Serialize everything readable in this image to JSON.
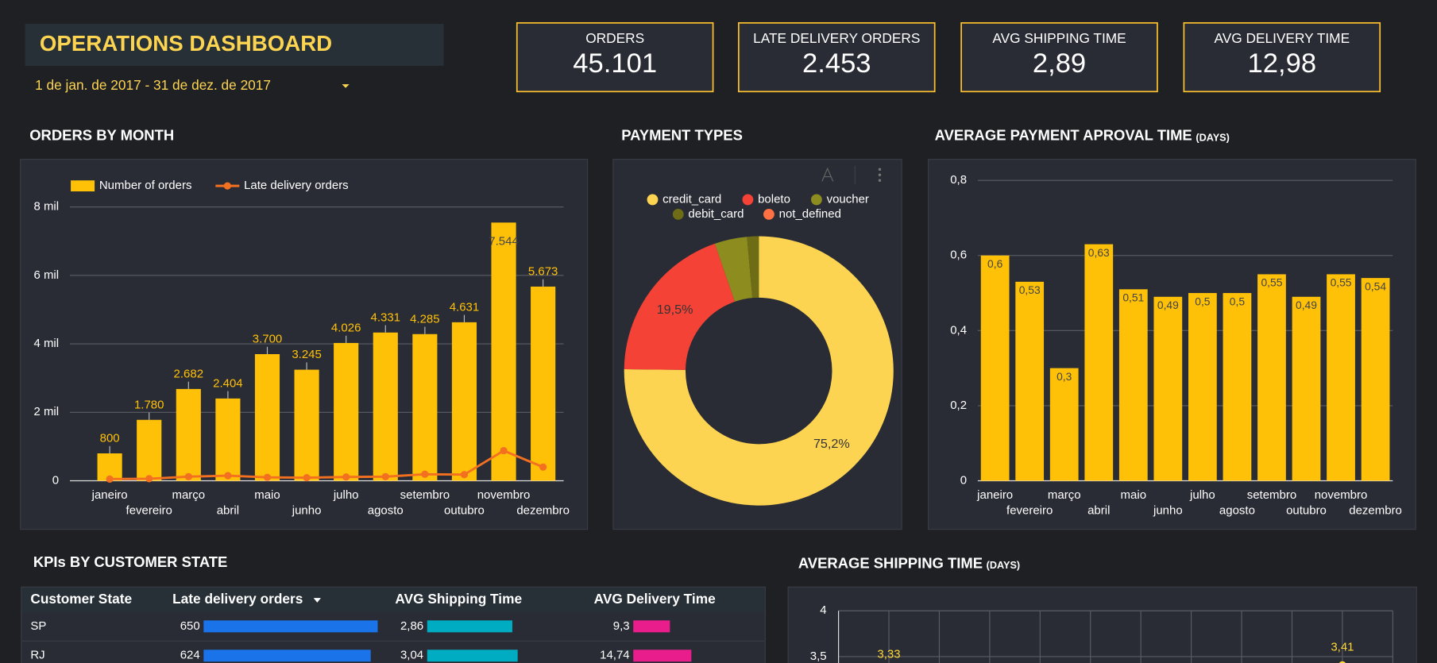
{
  "header": {
    "title": "OPERATIONS DASHBOARD",
    "date_range": "1 de jan. de 2017 - 31 de dez. de 2017"
  },
  "kpis": [
    {
      "label": "ORDERS",
      "value": "45.101"
    },
    {
      "label": "LATE DELIVERY ORDERS",
      "value": "2.453"
    },
    {
      "label": "AVG SHIPPING TIME",
      "value": "2,89"
    },
    {
      "label": "AVG DELIVERY TIME",
      "value": "12,98"
    }
  ],
  "table": {
    "title": "KPIs BY CUSTOMER STATE",
    "columns": [
      "Customer State",
      "Late delivery orders",
      "AVG Shipping Time",
      "AVG Delivery Time"
    ],
    "rows": [
      [
        "SP",
        650,
        {
          "value": 2.86,
          "label": "2,86"
        },
        {
          "value": 9.3,
          "label": "9,3"
        }
      ],
      [
        "RJ",
        624,
        {
          "value": 3.04,
          "label": "3,04"
        },
        {
          "value": 14.74,
          "label": "14,74"
        }
      ]
    ]
  },
  "chart_data": [
    {
      "type": "combo",
      "title": "ORDERS BY MONTH",
      "categories": [
        "janeiro",
        "fevereiro",
        "março",
        "abril",
        "maio",
        "junho",
        "julho",
        "agosto",
        "setembro",
        "outubro",
        "novembro",
        "dezembro"
      ],
      "series": [
        {
          "name": "Number of orders",
          "type": "bar",
          "color": "#ffc107",
          "values": [
            800,
            1780,
            2682,
            2404,
            3700,
            3245,
            4026,
            4331,
            4285,
            4631,
            7544,
            5673
          ],
          "value_labels": [
            "800",
            "1.780",
            "2.682",
            "2.404",
            "3.700",
            "3.245",
            "4.026",
            "4.331",
            "4.285",
            "4.631",
            "7.544",
            "5.673"
          ]
        },
        {
          "name": "Late delivery orders",
          "type": "line",
          "color": "#f37021",
          "values": [
            50,
            60,
            120,
            150,
            100,
            90,
            110,
            120,
            190,
            180,
            880,
            400
          ]
        }
      ],
      "ylim": [
        0,
        8000
      ],
      "yticks": [
        0,
        {
          "value": 2000,
          "label": "2 mil"
        },
        {
          "value": 4000,
          "label": "4 mil"
        },
        {
          "value": 6000,
          "label": "6 mil"
        },
        {
          "value": 8000,
          "label": "8 mil"
        }
      ],
      "grid": true,
      "legend": "top-left"
    },
    {
      "type": "pie",
      "title": "PAYMENT TYPES",
      "categories": [
        "credit_card",
        "boleto",
        "voucher",
        "debit_card",
        "not_defined"
      ],
      "values": [
        75.2,
        19.5,
        3.9,
        1.4,
        0
      ],
      "value_labels": [
        "75,2%",
        "19,5%",
        null,
        null,
        null
      ],
      "colors": [
        "#fdd451",
        "#f44336",
        "#8d8c1f",
        "#6e6d16",
        "#ff7043"
      ],
      "legend": "top"
    },
    {
      "type": "bar",
      "title": "AVERAGE PAYMENT APROVAL TIME",
      "subtitle": "(DAYS)",
      "categories": [
        "janeiro",
        "fevereiro",
        "março",
        "abril",
        "maio",
        "junho",
        "julho",
        "agosto",
        "setembro",
        "outubro",
        "novembro",
        "dezembro"
      ],
      "values": [
        0.6,
        0.53,
        0.3,
        0.63,
        0.51,
        0.49,
        0.5,
        0.5,
        0.55,
        0.49,
        0.55,
        0.54
      ],
      "value_labels": [
        "0,6",
        "0,53",
        "0,3",
        "0,63",
        "0,51",
        "0,49",
        "0,5",
        "0,5",
        "0,55",
        "0,49",
        "0,55",
        "0,54"
      ],
      "color": "#ffc107",
      "ylim": [
        0,
        0.8
      ],
      "yticks": [
        0,
        {
          "value": 0.2,
          "label": "0,2"
        },
        {
          "value": 0.4,
          "label": "0,4"
        },
        {
          "value": 0.6,
          "label": "0,6"
        },
        {
          "value": 0.8,
          "label": "0,8"
        }
      ],
      "grid": true
    },
    {
      "type": "line",
      "title": "AVERAGE SHIPPING TIME",
      "subtitle": "(DAYS)",
      "categories": [
        null,
        null,
        null,
        null,
        null,
        null,
        null,
        null,
        null,
        null,
        null,
        null
      ],
      "series": [
        {
          "color": "#fdd835",
          "values": [
            null,
            3.33,
            null,
            null,
            null,
            null,
            null,
            null,
            null,
            null,
            3.41,
            null
          ],
          "value_labels": [
            null,
            "3,33",
            null,
            null,
            null,
            null,
            null,
            null,
            null,
            null,
            "3,41",
            null
          ]
        }
      ],
      "ylim": [
        3,
        4
      ],
      "yticks": [
        4,
        {
          "value": 3.5,
          "label": "3,5"
        }
      ],
      "grid": true
    }
  ]
}
